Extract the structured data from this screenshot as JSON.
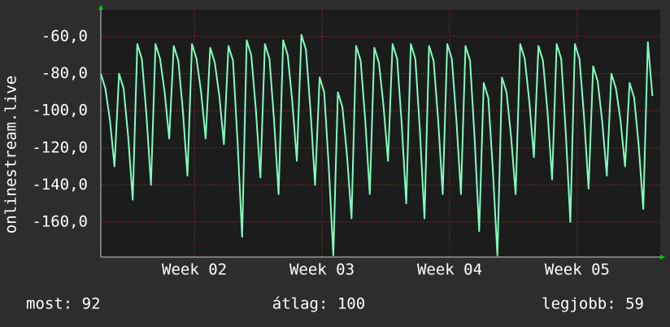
{
  "chart_data": {
    "type": "line",
    "y_label": "onlinestream.live",
    "x": [
      0,
      0.25,
      0.5,
      0.75,
      1,
      1.25,
      1.5,
      1.75,
      2,
      2.25,
      2.5,
      2.75,
      3,
      3.25,
      3.5,
      3.75,
      4,
      4.25,
      4.5,
      4.75,
      5,
      5.25,
      5.5,
      5.75,
      6,
      6.25,
      6.5,
      6.75,
      7,
      7.25,
      7.5,
      7.75,
      8,
      8.25,
      8.5,
      8.75,
      9,
      9.25,
      9.5,
      9.75,
      10,
      10.25,
      10.5,
      10.75,
      11,
      11.25,
      11.5,
      11.75,
      12,
      12.25,
      12.5,
      12.75,
      13,
      13.25,
      13.5,
      13.75,
      14,
      14.25,
      14.5,
      14.75,
      15,
      15.25,
      15.5,
      15.75,
      16,
      16.25,
      16.5,
      16.75,
      17,
      17.25,
      17.5,
      17.75,
      18,
      18.25,
      18.5,
      18.75,
      19,
      19.25,
      19.5,
      19.75,
      20,
      20.25,
      20.5,
      20.75,
      21,
      21.25,
      21.5,
      21.75,
      22,
      22.25,
      22.5,
      22.75,
      23,
      23.25,
      23.5,
      23.75,
      24,
      24.25,
      24.5,
      24.75,
      25,
      25.25,
      25.5,
      25.75,
      26,
      26.25,
      26.5,
      26.75,
      27,
      27.25,
      27.5,
      27.75,
      28,
      28.25,
      28.5,
      28.75,
      29,
      29.25,
      29.5,
      29.75,
      30,
      30.25
    ],
    "series": [
      {
        "color": "#80ffc0",
        "values": [
          -80,
          -88,
          -105,
          -130,
          -80,
          -88,
          -114,
          -148,
          -64,
          -72,
          -102,
          -140,
          -64,
          -72,
          -90,
          -115,
          -65,
          -73,
          -100,
          -135,
          -64,
          -72,
          -90,
          -115,
          -66,
          -74,
          -92,
          -118,
          -65,
          -73,
          -117,
          -168,
          -62,
          -70,
          -99,
          -136,
          -64,
          -72,
          -105,
          -145,
          -62,
          -70,
          -95,
          -127,
          -59,
          -67,
          -100,
          -140,
          -82,
          -90,
          -130,
          -178,
          -90,
          -98,
          -124,
          -158,
          -65,
          -73,
          -105,
          -145,
          -66,
          -74,
          -97,
          -127,
          -64,
          -72,
          -107,
          -150,
          -64,
          -72,
          -111,
          -158,
          -65,
          -73,
          -105,
          -145,
          -64,
          -72,
          -105,
          -145,
          -65,
          -73,
          -115,
          -165,
          -85,
          -93,
          -132,
          -178,
          -82,
          -90,
          -114,
          -145,
          -64,
          -72,
          -95,
          -125,
          -65,
          -73,
          -101,
          -137,
          -64,
          -72,
          -112,
          -160,
          -64,
          -72,
          -103,
          -142,
          -76,
          -84,
          -106,
          -135,
          -80,
          -88,
          -105,
          -130,
          -85,
          -93,
          -119,
          -153,
          -63,
          -92
        ]
      }
    ],
    "xlim": [
      0,
      30.68
    ],
    "xticks": [
      {
        "value": 5.13,
        "label": "Week 02"
      },
      {
        "value": 12.13,
        "label": "Week 03"
      },
      {
        "value": 19.13,
        "label": "Week 04"
      },
      {
        "value": 26.13,
        "label": "Week 05"
      }
    ],
    "ylim": [
      -178.9,
      -45.5
    ],
    "yticks": [
      {
        "value": -160,
        "label": "-160,0"
      },
      {
        "value": -140,
        "label": "-140,0"
      },
      {
        "value": -120,
        "label": "-120,0"
      },
      {
        "value": -100,
        "label": "-100,0"
      },
      {
        "value": -80,
        "label": "-80,0"
      },
      {
        "value": -60,
        "label": "-60,0"
      }
    ],
    "grid": true,
    "annotations": [
      "most: 92",
      "átlag: 100",
      "legjobb: 59"
    ]
  }
}
